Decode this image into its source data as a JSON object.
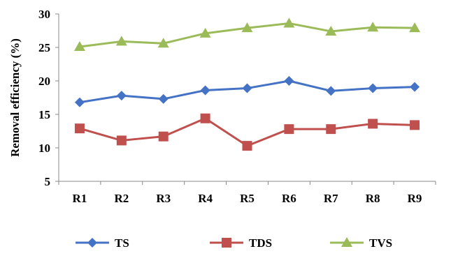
{
  "chart_data": {
    "type": "line",
    "title": "",
    "xlabel": "",
    "ylabel": "Removal efficiency (%)",
    "categories": [
      "R1",
      "R2",
      "R3",
      "R4",
      "R5",
      "R6",
      "R7",
      "R8",
      "R9"
    ],
    "yticks": [
      "5",
      "10",
      "15",
      "20",
      "25",
      "30"
    ],
    "ylim": [
      5,
      30
    ],
    "grid": false,
    "legend_position": "bottom",
    "series": [
      {
        "name": "TS",
        "color": "#4472C4",
        "marker": "diamond",
        "values": [
          16.8,
          17.8,
          17.3,
          18.6,
          18.9,
          20.0,
          18.5,
          18.9,
          19.1
        ]
      },
      {
        "name": "TDS",
        "color": "#C0504D",
        "marker": "square",
        "values": [
          12.9,
          11.1,
          11.7,
          14.4,
          10.3,
          12.8,
          12.8,
          13.6,
          13.4
        ]
      },
      {
        "name": "TVS",
        "color": "#9BBB59",
        "marker": "triangle",
        "values": [
          25.1,
          25.9,
          25.6,
          27.1,
          27.9,
          28.6,
          27.4,
          28.0,
          27.9
        ]
      }
    ]
  }
}
